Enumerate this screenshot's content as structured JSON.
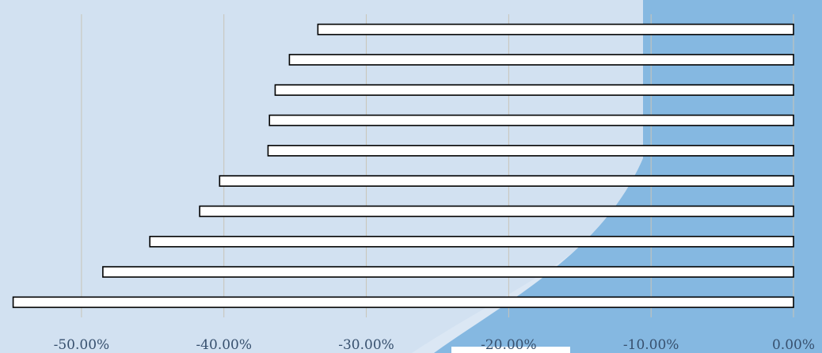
{
  "chart_data": {
    "type": "bar",
    "orientation": "horizontal",
    "values": [
      -33.4,
      -35.4,
      -36.4,
      -36.8,
      -36.9,
      -40.3,
      -41.7,
      -45.2,
      -48.5,
      -54.8
    ],
    "xlim": [
      -55,
      0
    ],
    "xticks": [
      -50,
      -40,
      -30,
      -20,
      -10,
      0
    ],
    "tick_labels": [
      "-50.00%",
      "-40.00%",
      "-30.00%",
      "-20.00%",
      "-10.00%",
      "0.00%"
    ],
    "grid": true,
    "legend": false,
    "colors": {
      "bar_fill": "#ffffff",
      "bar_stroke": "#000000",
      "grid": "#c9c4b8",
      "background_light": "#dbe7f4",
      "background_accent": "#85b8e1",
      "tick_text": "#37506e"
    }
  }
}
